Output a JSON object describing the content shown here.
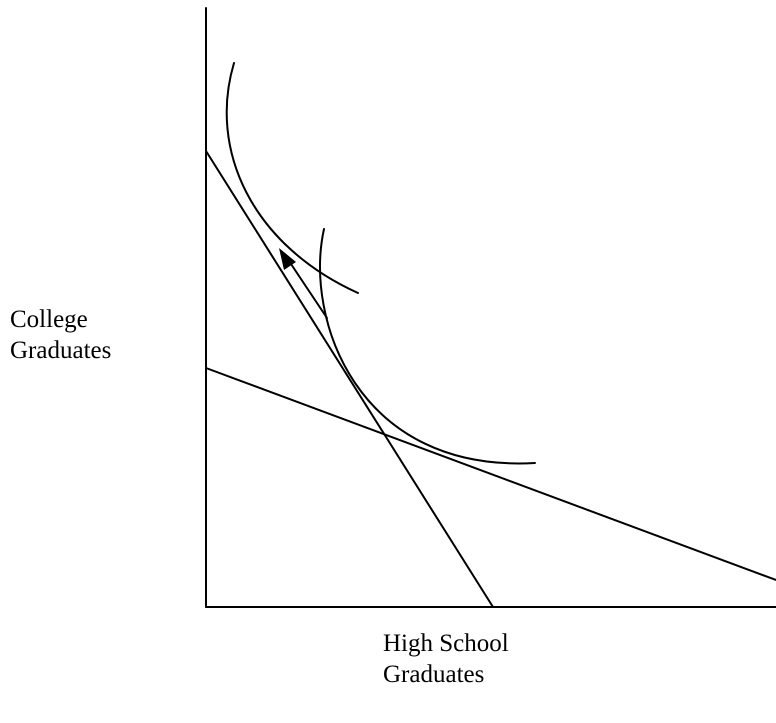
{
  "axes": {
    "y_label": [
      "College",
      "Graduates"
    ],
    "x_label": [
      "High School",
      "Graduates"
    ]
  },
  "colors": {
    "stroke": "#000000",
    "background": "#ffffff"
  }
}
